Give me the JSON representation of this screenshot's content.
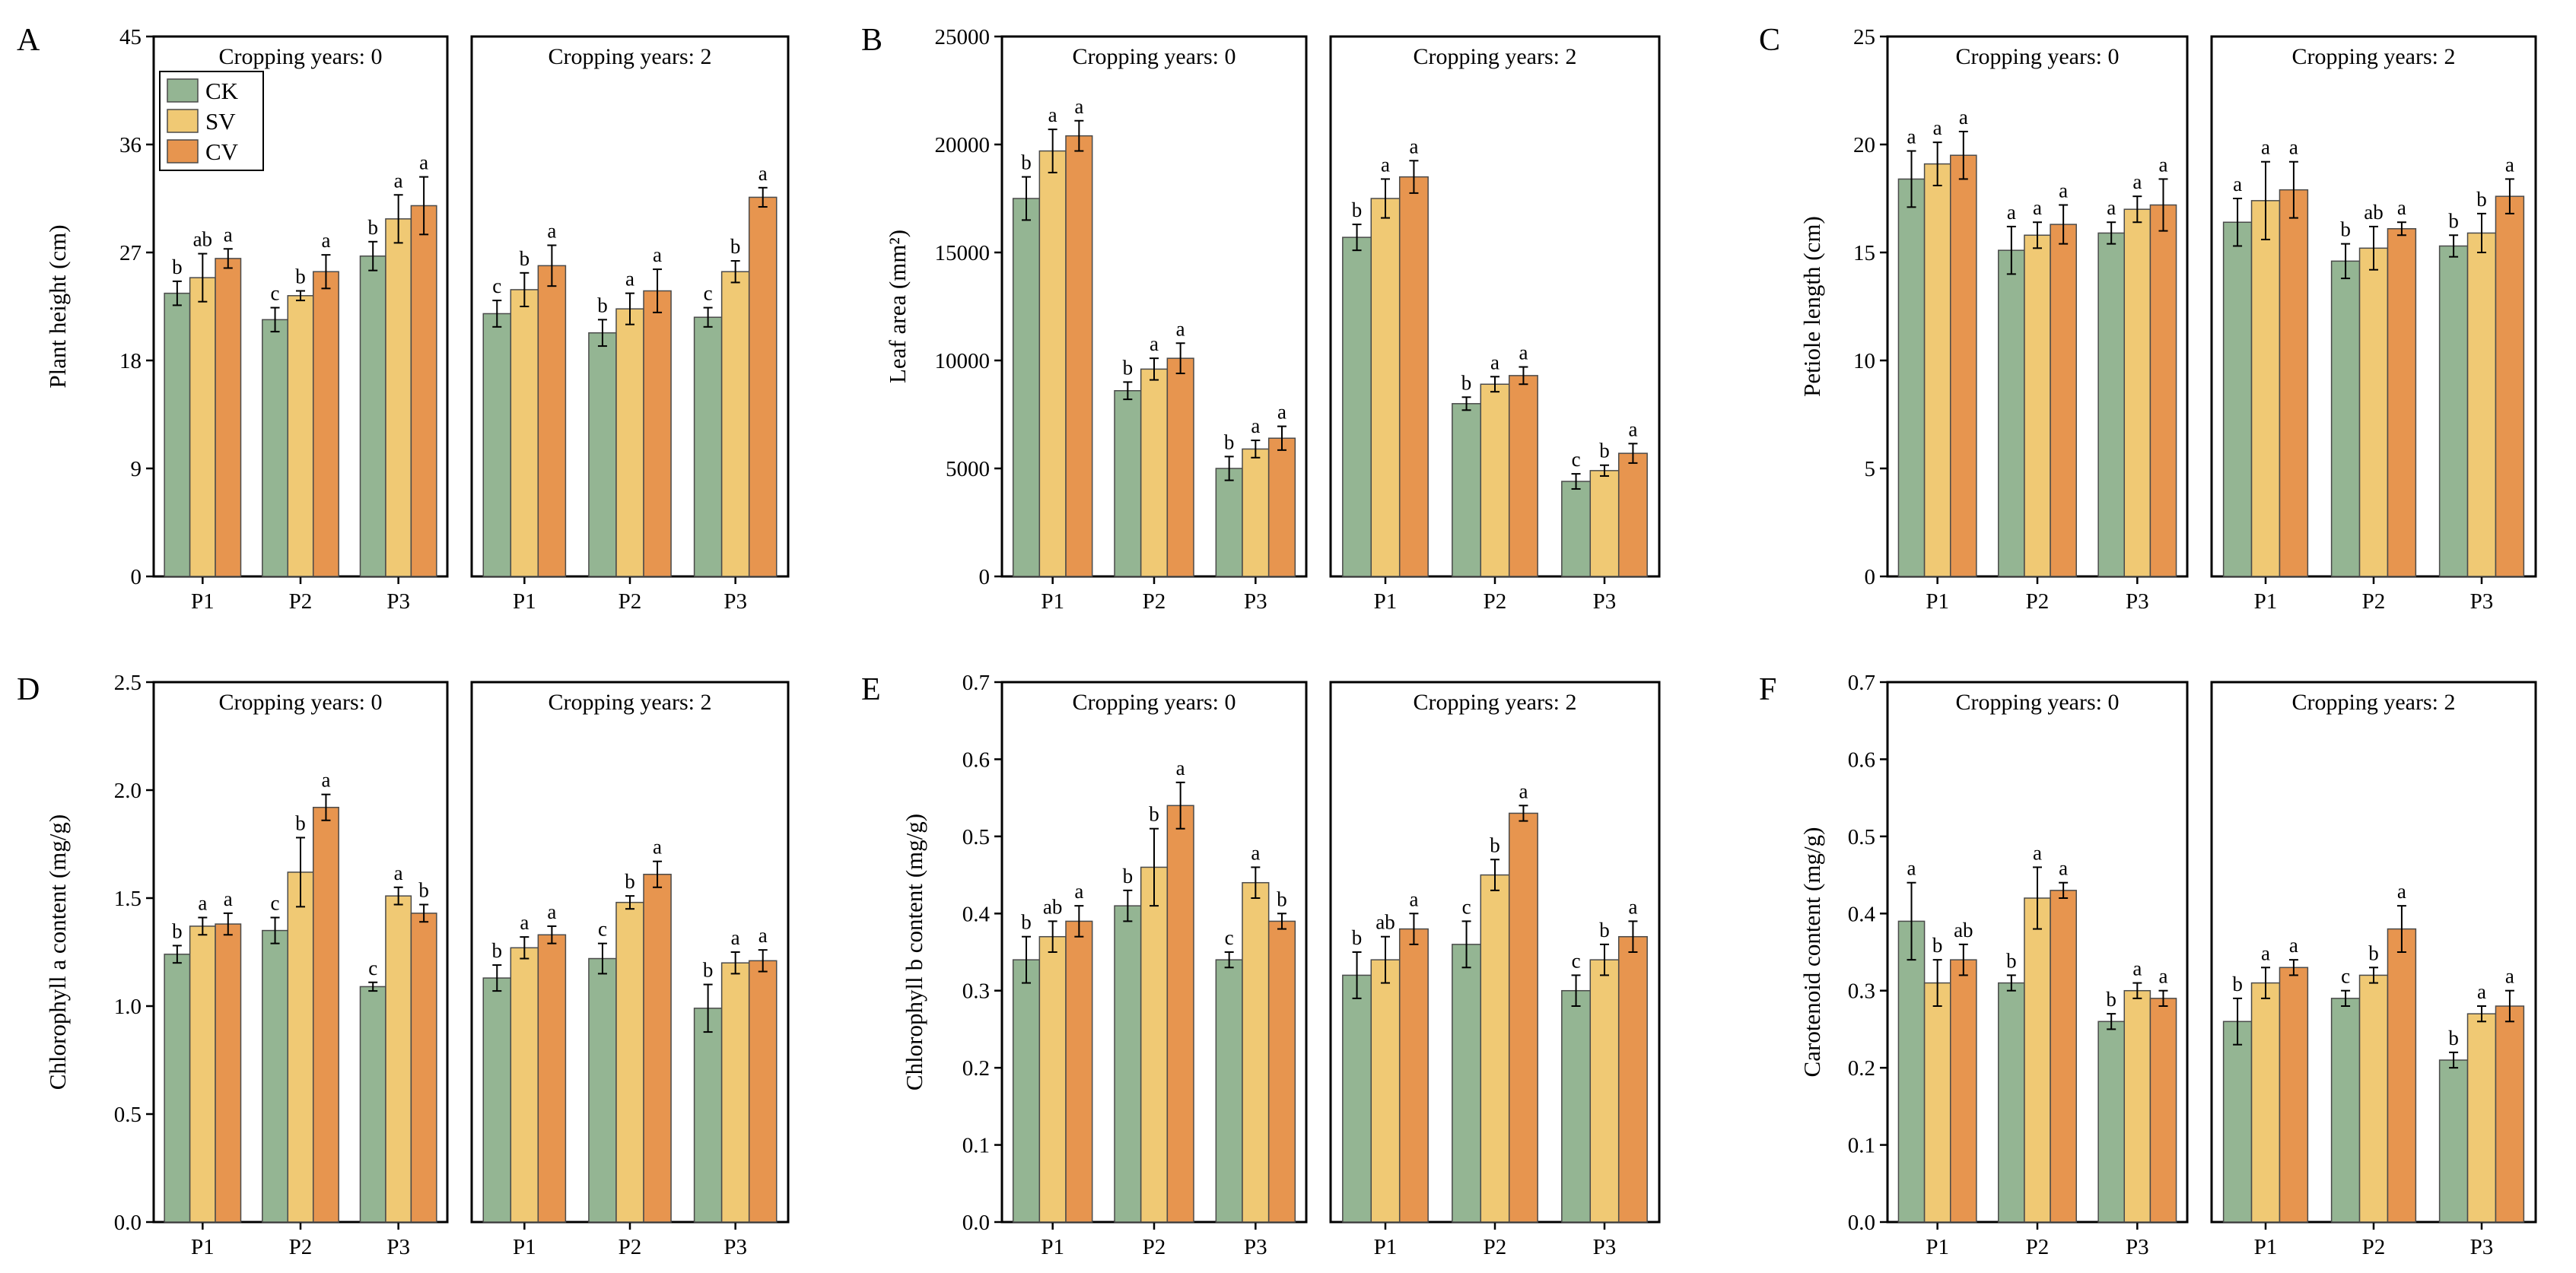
{
  "colors": {
    "CK": "#94b593",
    "SV": "#f0c974",
    "CV": "#e7954f"
  },
  "legend": [
    "CK",
    "SV",
    "CV"
  ],
  "facet_titles": [
    "Cropping years: 0",
    "Cropping years: 2"
  ],
  "chart_data": [
    {
      "panel": "A",
      "type": "bar",
      "ylabel": "Plant height (cm)",
      "ylim": [
        0,
        45
      ],
      "yticks": [
        0,
        9,
        18,
        27,
        36,
        45
      ],
      "legend_shown": true,
      "categories": [
        "P1",
        "P2",
        "P3"
      ],
      "facets": [
        {
          "title": "Cropping years: 0",
          "series": [
            {
              "name": "CK",
              "values": [
                23.6,
                21.4,
                26.7
              ],
              "errors": [
                1.0,
                1.0,
                1.2
              ],
              "letters": [
                "b",
                "c",
                "b"
              ]
            },
            {
              "name": "SV",
              "values": [
                24.9,
                23.4,
                29.8
              ],
              "errors": [
                2.0,
                0.4,
                2.0
              ],
              "letters": [
                "ab",
                "b",
                "a"
              ]
            },
            {
              "name": "CV",
              "values": [
                26.5,
                25.4,
                30.9
              ],
              "errors": [
                0.8,
                1.4,
                2.4
              ],
              "letters": [
                "a",
                "a",
                "a"
              ]
            }
          ]
        },
        {
          "title": "Cropping years: 2",
          "series": [
            {
              "name": "CK",
              "values": [
                21.9,
                20.3,
                21.6
              ],
              "errors": [
                1.1,
                1.1,
                0.8
              ],
              "letters": [
                "c",
                "b",
                "c"
              ]
            },
            {
              "name": "SV",
              "values": [
                23.9,
                22.3,
                25.4
              ],
              "errors": [
                1.4,
                1.3,
                0.9
              ],
              "letters": [
                "b",
                "a",
                "b"
              ]
            },
            {
              "name": "CV",
              "values": [
                25.9,
                23.8,
                31.6
              ],
              "errors": [
                1.7,
                1.8,
                0.8
              ],
              "letters": [
                "a",
                "a",
                "a"
              ]
            }
          ]
        }
      ]
    },
    {
      "panel": "B",
      "type": "bar",
      "ylabel": "Leaf area (mm²)",
      "ylim": [
        0,
        25000
      ],
      "yticks": [
        0,
        5000,
        10000,
        15000,
        20000,
        25000
      ],
      "legend_shown": false,
      "categories": [
        "P1",
        "P2",
        "P3"
      ],
      "facets": [
        {
          "title": "Cropping years: 0",
          "series": [
            {
              "name": "CK",
              "values": [
                17500,
                8600,
                5000
              ],
              "errors": [
                1000,
                400,
                550
              ],
              "letters": [
                "b",
                "b",
                "b"
              ]
            },
            {
              "name": "SV",
              "values": [
                19700,
                9600,
                5900
              ],
              "errors": [
                1000,
                500,
                400
              ],
              "letters": [
                "a",
                "a",
                "a"
              ]
            },
            {
              "name": "CV",
              "values": [
                20400,
                10100,
                6400
              ],
              "errors": [
                700,
                700,
                550
              ],
              "letters": [
                "a",
                "a",
                "a"
              ]
            }
          ]
        },
        {
          "title": "Cropping years: 2",
          "series": [
            {
              "name": "CK",
              "values": [
                15700,
                8000,
                4400
              ],
              "errors": [
                600,
                300,
                350
              ],
              "letters": [
                "b",
                "b",
                "c"
              ]
            },
            {
              "name": "SV",
              "values": [
                17500,
                8900,
                4900
              ],
              "errors": [
                900,
                350,
                250
              ],
              "letters": [
                "a",
                "a",
                "b"
              ]
            },
            {
              "name": "CV",
              "values": [
                18500,
                9300,
                5700
              ],
              "errors": [
                750,
                400,
                450
              ],
              "letters": [
                "a",
                "a",
                "a"
              ]
            }
          ]
        }
      ]
    },
    {
      "panel": "C",
      "type": "bar",
      "ylabel": "Petiole length (cm)",
      "ylim": [
        0,
        25
      ],
      "yticks": [
        0,
        5,
        10,
        15,
        20,
        25
      ],
      "legend_shown": false,
      "categories": [
        "P1",
        "P2",
        "P3"
      ],
      "facets": [
        {
          "title": "Cropping years: 0",
          "series": [
            {
              "name": "CK",
              "values": [
                18.4,
                15.1,
                15.9
              ],
              "errors": [
                1.3,
                1.1,
                0.5
              ],
              "letters": [
                "a",
                "a",
                "a"
              ]
            },
            {
              "name": "SV",
              "values": [
                19.1,
                15.8,
                17.0
              ],
              "errors": [
                1.0,
                0.6,
                0.6
              ],
              "letters": [
                "a",
                "a",
                "a"
              ]
            },
            {
              "name": "CV",
              "values": [
                19.5,
                16.3,
                17.2
              ],
              "errors": [
                1.1,
                0.9,
                1.2
              ],
              "letters": [
                "a",
                "a",
                "a"
              ]
            }
          ]
        },
        {
          "title": "Cropping years: 2",
          "series": [
            {
              "name": "CK",
              "values": [
                16.4,
                14.6,
                15.3
              ],
              "errors": [
                1.1,
                0.8,
                0.5
              ],
              "letters": [
                "a",
                "b",
                "b"
              ]
            },
            {
              "name": "SV",
              "values": [
                17.4,
                15.2,
                15.9
              ],
              "errors": [
                1.8,
                1.0,
                0.9
              ],
              "letters": [
                "a",
                "ab",
                "b"
              ]
            },
            {
              "name": "CV",
              "values": [
                17.9,
                16.1,
                17.6
              ],
              "errors": [
                1.3,
                0.3,
                0.8
              ],
              "letters": [
                "a",
                "a",
                "a"
              ]
            }
          ]
        }
      ]
    },
    {
      "panel": "D",
      "type": "bar",
      "ylabel": "Chlorophyll a content (mg/g)",
      "ylim": [
        0,
        2.5
      ],
      "yticks": [
        0.0,
        0.5,
        1.0,
        1.5,
        2.0,
        2.5
      ],
      "legend_shown": false,
      "categories": [
        "P1",
        "P2",
        "P3"
      ],
      "facets": [
        {
          "title": "Cropping years: 0",
          "series": [
            {
              "name": "CK",
              "values": [
                1.24,
                1.35,
                1.09
              ],
              "errors": [
                0.04,
                0.06,
                0.02
              ],
              "letters": [
                "b",
                "c",
                "c"
              ]
            },
            {
              "name": "SV",
              "values": [
                1.37,
                1.62,
                1.51
              ],
              "errors": [
                0.04,
                0.16,
                0.04
              ],
              "letters": [
                "a",
                "b",
                "a"
              ]
            },
            {
              "name": "CV",
              "values": [
                1.38,
                1.92,
                1.43
              ],
              "errors": [
                0.05,
                0.06,
                0.04
              ],
              "letters": [
                "a",
                "a",
                "b"
              ]
            }
          ]
        },
        {
          "title": "Cropping years: 2",
          "series": [
            {
              "name": "CK",
              "values": [
                1.13,
                1.22,
                0.99
              ],
              "errors": [
                0.06,
                0.07,
                0.11
              ],
              "letters": [
                "b",
                "c",
                "b"
              ]
            },
            {
              "name": "SV",
              "values": [
                1.27,
                1.48,
                1.2
              ],
              "errors": [
                0.05,
                0.03,
                0.05
              ],
              "letters": [
                "a",
                "b",
                "a"
              ]
            },
            {
              "name": "CV",
              "values": [
                1.33,
                1.61,
                1.21
              ],
              "errors": [
                0.04,
                0.06,
                0.05
              ],
              "letters": [
                "a",
                "a",
                "a"
              ]
            }
          ]
        }
      ]
    },
    {
      "panel": "E",
      "type": "bar",
      "ylabel": "Chlorophyll b content (mg/g)",
      "ylim": [
        0,
        0.7
      ],
      "yticks": [
        0.0,
        0.1,
        0.2,
        0.3,
        0.4,
        0.5,
        0.6,
        0.7
      ],
      "legend_shown": false,
      "categories": [
        "P1",
        "P2",
        "P3"
      ],
      "facets": [
        {
          "title": "Cropping years: 0",
          "series": [
            {
              "name": "CK",
              "values": [
                0.34,
                0.41,
                0.34
              ],
              "errors": [
                0.03,
                0.02,
                0.01
              ],
              "letters": [
                "b",
                "b",
                "c"
              ]
            },
            {
              "name": "SV",
              "values": [
                0.37,
                0.46,
                0.44
              ],
              "errors": [
                0.02,
                0.05,
                0.02
              ],
              "letters": [
                "ab",
                "b",
                "a"
              ]
            },
            {
              "name": "CV",
              "values": [
                0.39,
                0.54,
                0.39
              ],
              "errors": [
                0.02,
                0.03,
                0.01
              ],
              "letters": [
                "a",
                "a",
                "b"
              ]
            }
          ]
        },
        {
          "title": "Cropping years: 2",
          "series": [
            {
              "name": "CK",
              "values": [
                0.32,
                0.36,
                0.3
              ],
              "errors": [
                0.03,
                0.03,
                0.02
              ],
              "letters": [
                "b",
                "c",
                "c"
              ]
            },
            {
              "name": "SV",
              "values": [
                0.34,
                0.45,
                0.34
              ],
              "errors": [
                0.03,
                0.02,
                0.02
              ],
              "letters": [
                "ab",
                "b",
                "b"
              ]
            },
            {
              "name": "CV",
              "values": [
                0.38,
                0.53,
                0.37
              ],
              "errors": [
                0.02,
                0.01,
                0.02
              ],
              "letters": [
                "a",
                "a",
                "a"
              ]
            }
          ]
        }
      ]
    },
    {
      "panel": "F",
      "type": "bar",
      "ylabel": "Carotenoid content (mg/g)",
      "ylim": [
        0,
        0.7
      ],
      "yticks": [
        0.0,
        0.1,
        0.2,
        0.3,
        0.4,
        0.5,
        0.6,
        0.7
      ],
      "legend_shown": false,
      "categories": [
        "P1",
        "P2",
        "P3"
      ],
      "facets": [
        {
          "title": "Cropping years: 0",
          "series": [
            {
              "name": "CK",
              "values": [
                0.39,
                0.31,
                0.26
              ],
              "errors": [
                0.05,
                0.01,
                0.01
              ],
              "letters": [
                "a",
                "b",
                "b"
              ]
            },
            {
              "name": "SV",
              "values": [
                0.31,
                0.42,
                0.3
              ],
              "errors": [
                0.03,
                0.04,
                0.01
              ],
              "letters": [
                "b",
                "a",
                "a"
              ]
            },
            {
              "name": "CV",
              "values": [
                0.34,
                0.43,
                0.29
              ],
              "errors": [
                0.02,
                0.01,
                0.01
              ],
              "letters": [
                "ab",
                "a",
                "a"
              ]
            }
          ]
        },
        {
          "title": "Cropping years: 2",
          "series": [
            {
              "name": "CK",
              "values": [
                0.26,
                0.29,
                0.21
              ],
              "errors": [
                0.03,
                0.01,
                0.01
              ],
              "letters": [
                "b",
                "c",
                "b"
              ]
            },
            {
              "name": "SV",
              "values": [
                0.31,
                0.32,
                0.27
              ],
              "errors": [
                0.02,
                0.01,
                0.01
              ],
              "letters": [
                "a",
                "b",
                "a"
              ]
            },
            {
              "name": "CV",
              "values": [
                0.33,
                0.38,
                0.28
              ],
              "errors": [
                0.01,
                0.03,
                0.02
              ],
              "letters": [
                "a",
                "a",
                "a"
              ]
            }
          ]
        }
      ]
    }
  ]
}
